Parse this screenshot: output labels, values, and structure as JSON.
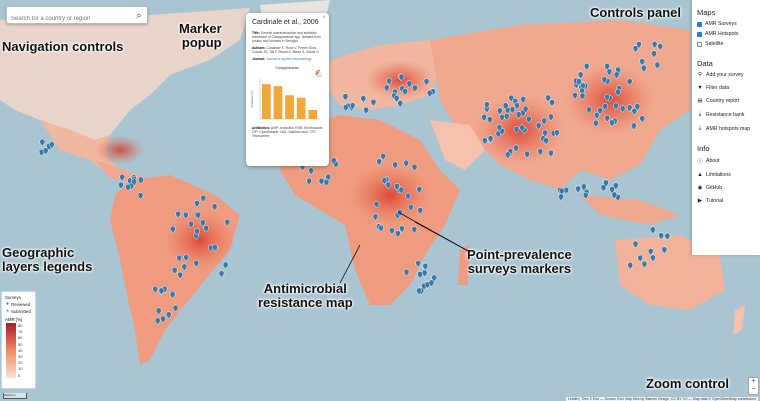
{
  "search": {
    "placeholder": "Search for a country or region"
  },
  "popup": {
    "title": "Cardinale et al., 2006",
    "close": "×",
    "title_label": "Title:",
    "title_text": "Genetic characterization and antibiotic resistance of Campylobacter spp. isolated from poultry and humans in Senegal",
    "authors_label": "Authors:",
    "authors_text": "Cardinale E, Rose V, Perrier Gros-Claude JD, Tall F, Rivoal K, Mead G, Salvat G",
    "journal_label": "Journal:",
    "journal_text": "Journal of applied microbiology",
    "chart_title": "Campylobacter",
    "ylabel": "Resistance (%)",
    "antibiotics_label": "Antibiotics:",
    "antibiotics_text": "AMP: Ampicillin; ENR: Enrofloxacin; CIP: Ciprofloxacin; NAL: Nalidixic acid; TET: Tetracycline"
  },
  "chart_data": {
    "type": "bar",
    "title": "Campylobacter",
    "ylabel": "Resistance (%)",
    "categories": [
      "",
      "",
      "",
      "",
      ""
    ],
    "values": [
      85,
      80,
      58,
      52,
      22
    ],
    "ylim": [
      0,
      100
    ],
    "color": "#f0a83a"
  },
  "panel": {
    "maps_title": "Maps",
    "maps_items": [
      {
        "label": "AMR Surveys",
        "checked": true
      },
      {
        "label": "AMR Hotspots",
        "checked": true
      },
      {
        "label": "Satellite",
        "checked": false
      }
    ],
    "data_title": "Data",
    "data_items": [
      {
        "label": "Add your survey",
        "icon": "map-pin-icon",
        "glyph": "⚲"
      },
      {
        "label": "Filter data",
        "icon": "filter-icon",
        "glyph": "▼"
      },
      {
        "label": "Country report",
        "icon": "document-icon",
        "glyph": "▤"
      },
      {
        "label": "Resistance bank",
        "icon": "download-icon",
        "glyph": "⤓"
      },
      {
        "label": "AMR hotspots map",
        "icon": "download-icon",
        "glyph": "⤓"
      }
    ],
    "info_title": "Info",
    "info_items": [
      {
        "label": "About",
        "icon": "info-icon",
        "glyph": "ⓘ"
      },
      {
        "label": "Limitations",
        "icon": "warning-icon",
        "glyph": "▲"
      },
      {
        "label": "GitHub",
        "icon": "github-icon",
        "glyph": "◉"
      },
      {
        "label": "Tutorial",
        "icon": "video-icon",
        "glyph": "▶"
      }
    ]
  },
  "legend": {
    "surveys_title": "Surveys",
    "reviewed": "Reviewed",
    "submitted": "Submitted",
    "amr_title": "AMR [%]",
    "ticks": [
      "80",
      "70",
      "60",
      "50",
      "40",
      "30",
      "20",
      "10",
      "0"
    ]
  },
  "annotations": {
    "controls_panel": "Controls panel",
    "navigation_controls": "Navigation controls",
    "marker_popup": "Marker\npopup",
    "geographic_legends": "Geographic\nlayers legends",
    "point_prevalence": "Point-prevalence\nsurveys markers",
    "amr_map": "Antimicrobial\nresistance map",
    "zoom_control": "Zoom control"
  },
  "zoom": {
    "plus": "+",
    "minus": "−"
  },
  "attribution": "Leaflet | Tiles © Esri — Source: Esri. Map tiles by Stamen Design, CC BY 3.0 — Map data © OpenStreetMap contributors",
  "scale": "2000 km",
  "colors": {
    "ocean": "#a9c5d2",
    "land": "#f2b7a1",
    "hot": "#e2553f",
    "marker": "#3b78a8",
    "accent": "#2f7ad8"
  }
}
